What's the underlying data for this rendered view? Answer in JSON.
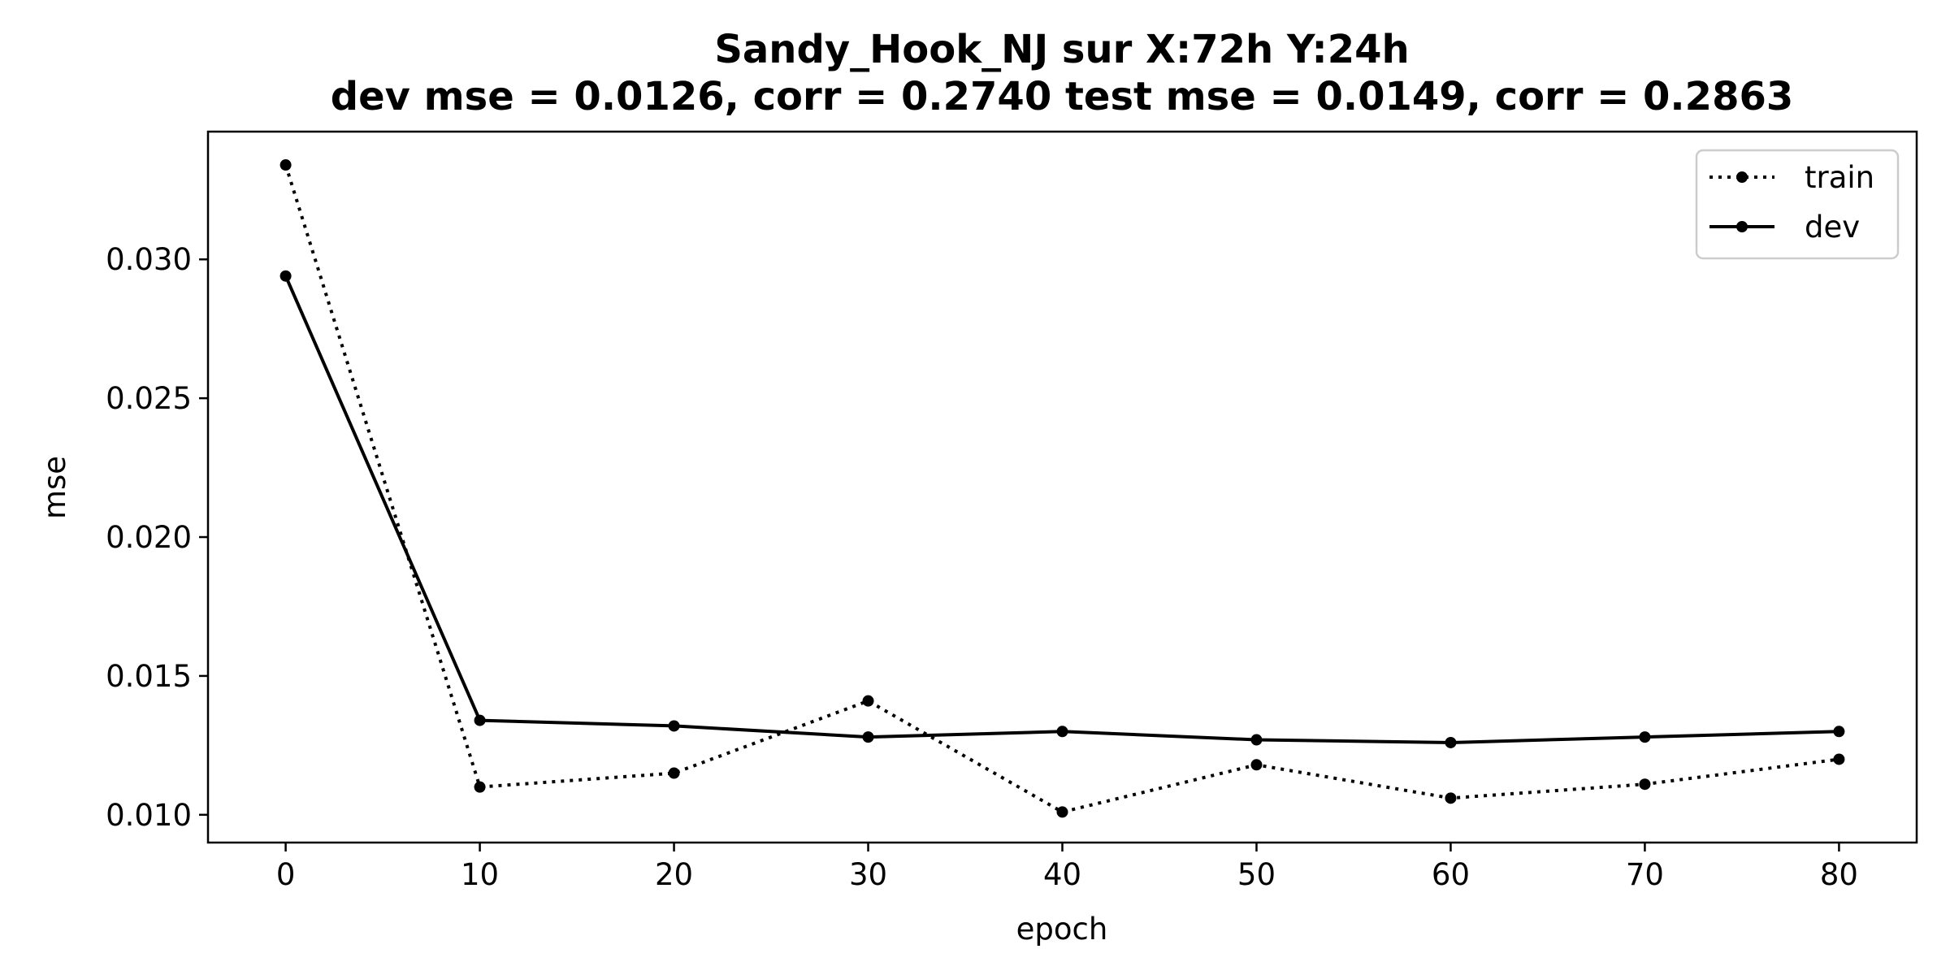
{
  "chart_data": {
    "type": "line",
    "title": "Sandy_Hook_NJ   sur   X:72h   Y:24h",
    "subtitle": "dev mse = 0.0126, corr = 0.2740   test mse = 0.0149, corr = 0.2863",
    "xlabel": "epoch",
    "ylabel": "mse",
    "x": [
      0,
      10,
      20,
      30,
      40,
      50,
      60,
      70,
      80
    ],
    "xlim": [
      -4,
      84
    ],
    "ylim": [
      0.009,
      0.0346
    ],
    "xticks": [
      0,
      10,
      20,
      30,
      40,
      50,
      60,
      70,
      80
    ],
    "yticks": [
      0.01,
      0.015,
      0.02,
      0.025,
      0.03
    ],
    "xtick_labels": [
      "0",
      "10",
      "20",
      "30",
      "40",
      "50",
      "60",
      "70",
      "80"
    ],
    "ytick_labels": [
      "0.010",
      "0.015",
      "0.020",
      "0.025",
      "0.030"
    ],
    "grid": false,
    "legend_position": "top-right",
    "series": [
      {
        "name": "train",
        "style": "dotted",
        "color": "#000000",
        "values": [
          0.0334,
          0.011,
          0.0115,
          0.0141,
          0.0101,
          0.0118,
          0.0106,
          0.0111,
          0.012
        ]
      },
      {
        "name": "dev",
        "style": "solid",
        "color": "#000000",
        "values": [
          0.0294,
          0.0134,
          0.0132,
          0.0128,
          0.013,
          0.0127,
          0.0126,
          0.0128,
          0.013
        ]
      }
    ]
  }
}
